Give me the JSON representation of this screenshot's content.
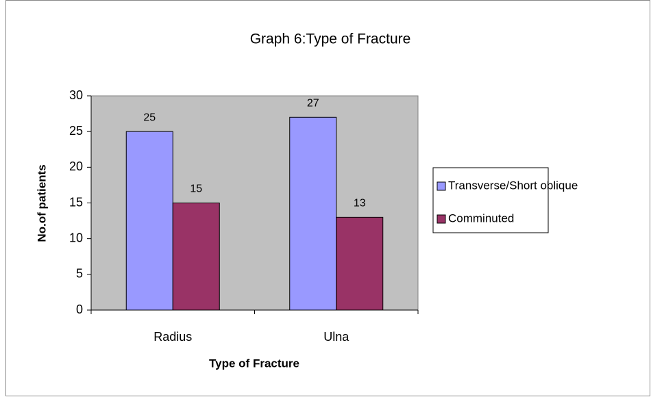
{
  "chart_data": {
    "type": "bar",
    "title": "Graph 6:Type of Fracture",
    "x_label": "Type of Fracture",
    "y_label": "No.of patients",
    "categories": [
      "Radius",
      "Ulna"
    ],
    "series": [
      {
        "name": "Transverse/Short oblique",
        "color": "#9999ff",
        "values": [
          25,
          27
        ]
      },
      {
        "name": "Comminuted",
        "color": "#993366",
        "values": [
          15,
          13
        ]
      }
    ],
    "ylim": [
      0,
      30
    ],
    "yticks": [
      0,
      5,
      10,
      15,
      20,
      25,
      30
    ],
    "grid": false,
    "legend": "right",
    "plot_background": "#c0c0c0"
  }
}
